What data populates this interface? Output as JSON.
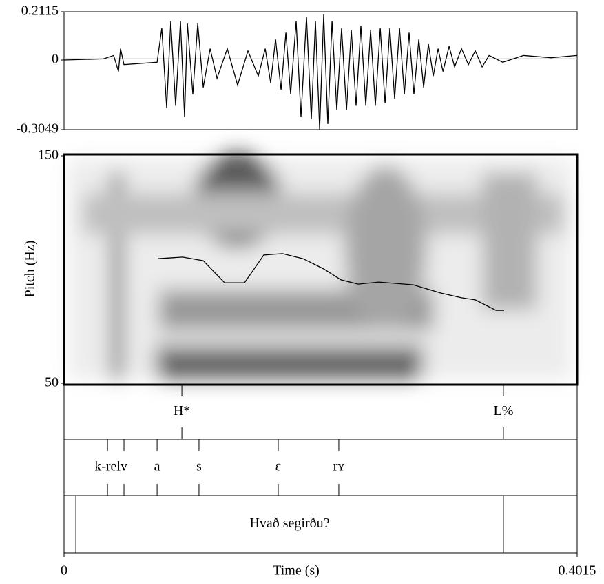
{
  "chart_data": [
    {
      "type": "line",
      "xlim": [
        0,
        0.4015
      ],
      "ylim": [
        -0.3049,
        0.2115
      ],
      "yticks": [
        -0.3049,
        0,
        0.2115
      ],
      "series": [
        {
          "color": "#000000",
          "x": [
            0,
            0.0307,
            0.0388,
            0.0426,
            0.0442,
            0.0469,
            0.0728,
            0.0765,
            0.0803,
            0.0835,
            0.0873,
            0.0911,
            0.0943,
            0.0965,
            0.1008,
            0.1046,
            0.1089,
            0.1143,
            0.1197,
            0.1277,
            0.1358,
            0.1439,
            0.152,
            0.1574,
            0.1617,
            0.1655,
            0.1698,
            0.1736,
            0.1773,
            0.1816,
            0.1854,
            0.1897,
            0.1935,
            0.1967,
            0.2,
            0.2032,
            0.2064,
            0.2097,
            0.2134,
            0.2172,
            0.221,
            0.2248,
            0.2285,
            0.2323,
            0.2361,
            0.2399,
            0.2436,
            0.2474,
            0.2512,
            0.2549,
            0.2587,
            0.2625,
            0.2663,
            0.27,
            0.2738,
            0.2776,
            0.2814,
            0.2851,
            0.2889,
            0.2927,
            0.2965,
            0.3013,
            0.3056,
            0.311,
            0.3164,
            0.3218,
            0.3272,
            0.3326,
            0.3433,
            0.3595,
            0.3811,
            0.4015
          ],
          "values": [
            0,
            0.005,
            0.02,
            -0.05,
            0.05,
            -0.02,
            -0.01,
            0.14,
            -0.21,
            0.17,
            -0.2,
            0.17,
            -0.25,
            0.16,
            -0.15,
            0.16,
            -0.12,
            0.05,
            -0.08,
            0.05,
            -0.11,
            0.04,
            -0.07,
            0.05,
            -0.1,
            0.09,
            -0.13,
            0.12,
            -0.15,
            0.17,
            -0.25,
            0.19,
            -0.26,
            0.17,
            -0.3049,
            0.2,
            -0.28,
            0.17,
            -0.22,
            0.14,
            -0.22,
            0.13,
            -0.2,
            0.15,
            -0.2,
            0.13,
            -0.2,
            0.14,
            -0.19,
            0.14,
            -0.17,
            0.14,
            -0.15,
            0.12,
            -0.15,
            0.09,
            -0.12,
            0.07,
            -0.07,
            0.05,
            -0.05,
            0.06,
            -0.03,
            0.05,
            -0.02,
            0.04,
            -0.03,
            0.02,
            -0.01,
            0.02,
            0.01,
            0.02
          ]
        }
      ]
    },
    {
      "type": "line",
      "y_label": "Pitch (Hz)",
      "x_label": "Time (s)",
      "xlim": [
        0,
        0.4015
      ],
      "xticks": [
        0,
        0.4015
      ],
      "ylim": [
        50,
        150
      ],
      "yticks": [
        50,
        150
      ],
      "series": [
        {
          "color": "#000000",
          "x": [
            0.0733,
            0.0927,
            0.1089,
            0.1256,
            0.1412,
            0.1563,
            0.1709,
            0.187,
            0.2032,
            0.2167,
            0.2302,
            0.2463,
            0.2733,
            0.2948,
            0.311,
            0.3218,
            0.338,
            0.3444
          ],
          "values": [
            104.8,
            105.5,
            103.9,
            94.2,
            94.2,
            106.4,
            107.0,
            104.8,
            100.3,
            95.5,
            93.6,
            94.5,
            93.3,
            89.7,
            87.6,
            86.7,
            82.1,
            82.1
          ]
        }
      ]
    },
    {
      "type": "textgrid",
      "xlim": [
        0,
        0.4015
      ],
      "tiers": [
        {
          "points": [
            {
              "time": 0.0922,
              "label": "H*"
            },
            {
              "time": 0.3438,
              "label": "L%"
            }
          ]
        },
        {
          "points": [
            {
              "time": 0.034,
              "label": "k-rel"
            },
            {
              "time": 0.0469,
              "label": "v"
            },
            {
              "time": 0.0728,
              "label": "a"
            },
            {
              "time": 0.1056,
              "label": "s"
            },
            {
              "time": 0.1676,
              "label": "ɛ"
            },
            {
              "time": 0.215,
              "label": "rʏ"
            }
          ]
        },
        {
          "intervals": [
            {
              "start": 0.0092,
              "end": 0.3438,
              "label": "Hvað segirðu?"
            }
          ]
        }
      ]
    }
  ]
}
